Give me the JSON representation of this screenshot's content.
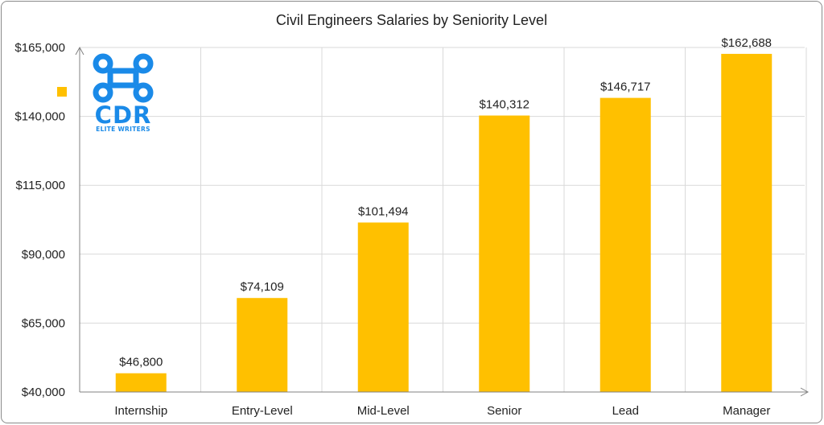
{
  "chart_data": {
    "type": "bar",
    "title": "Civil Engineers Salaries by Seniority Level",
    "xlabel": "",
    "ylabel": "",
    "categories": [
      "Internship",
      "Entry-Level",
      "Mid-Level",
      "Senior",
      "Lead",
      "Manager"
    ],
    "values": [
      46800,
      74109,
      101494,
      140312,
      146717,
      162688
    ],
    "data_labels": [
      "$46,800",
      "$74,109",
      "$101,494",
      "$140,312",
      "$146,717",
      "$162,688"
    ],
    "ylim": [
      40000,
      165000
    ],
    "yticks": [
      40000,
      65000,
      90000,
      115000,
      140000,
      165000
    ],
    "ytick_labels": [
      "$40,000",
      "$65,000",
      "$90,000",
      "$115,000",
      "$140,000",
      "$165,000"
    ],
    "grid": true,
    "bar_color": "#FFC000",
    "grid_color": "#D9D9D9",
    "legend_placement": "left"
  },
  "logo": {
    "text": "CDR",
    "subtext": "ELITE WRITERS",
    "color": "#1a8ae8",
    "icon": "command-key-icon"
  }
}
